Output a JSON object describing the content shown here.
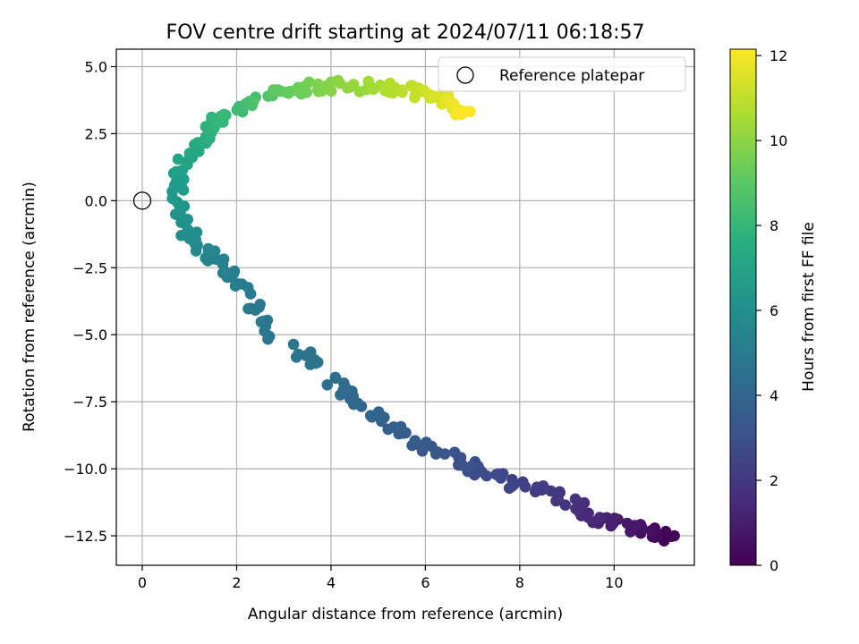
{
  "chart_data": {
    "type": "scatter",
    "title": "FOV centre drift starting at 2024/07/11 06:18:57",
    "xlabel": "Angular distance from reference (arcmin)",
    "ylabel": "Rotation from reference (arcmin)",
    "xlim": [
      -0.55,
      11.7
    ],
    "ylim": [
      -13.6,
      5.65
    ],
    "xticks": [
      0,
      2,
      4,
      6,
      8,
      10
    ],
    "yticks": [
      5.0,
      2.5,
      0.0,
      -2.5,
      -5.0,
      -7.5,
      -10.0,
      -12.5
    ],
    "xtick_labels": [
      "0",
      "2",
      "4",
      "6",
      "8",
      "10"
    ],
    "ytick_labels": [
      "5.0",
      "2.5",
      "0.0",
      "−2.5",
      "−5.0",
      "−7.5",
      "−10.0",
      "−12.5"
    ],
    "grid": true,
    "legend": {
      "placement": "top-right",
      "entries": [
        {
          "label": "Reference platepar",
          "marker": "open-circle"
        }
      ]
    },
    "reference_point": {
      "x": 0,
      "y": 0
    },
    "colorbar": {
      "label": "Hours from first FF file",
      "range": [
        0,
        12.15
      ],
      "ticks": [
        0,
        2,
        4,
        6,
        8,
        10,
        12
      ],
      "tick_labels": [
        "0",
        "2",
        "4",
        "6",
        "8",
        "10",
        "12"
      ],
      "colormap": "viridis"
    },
    "path_nodes": [
      {
        "x": 11.2,
        "y": -12.5,
        "t": 0.0
      },
      {
        "x": 10.5,
        "y": -12.3,
        "t": 0.6
      },
      {
        "x": 9.6,
        "y": -11.8,
        "t": 1.3
      },
      {
        "x": 8.8,
        "y": -11.0,
        "t": 1.9
      },
      {
        "x": 7.6,
        "y": -10.4,
        "t": 2.6
      },
      {
        "x": 6.6,
        "y": -9.6,
        "t": 3.1
      },
      {
        "x": 5.4,
        "y": -8.6,
        "t": 3.6
      },
      {
        "x": 4.4,
        "y": -7.4,
        "t": 4.1
      },
      {
        "x": 3.7,
        "y": -6.1,
        "t": 4.6
      },
      {
        "x": 2.7,
        "y": -4.9,
        "t": 4.8
      },
      {
        "x": 2.2,
        "y": -3.3,
        "t": 5.0
      },
      {
        "x": 1.6,
        "y": -2.3,
        "t": 5.4
      },
      {
        "x": 1.0,
        "y": -1.2,
        "t": 5.9
      },
      {
        "x": 0.7,
        "y": 0.0,
        "t": 6.4
      },
      {
        "x": 0.8,
        "y": 1.2,
        "t": 6.9
      },
      {
        "x": 1.3,
        "y": 2.5,
        "t": 7.6
      },
      {
        "x": 2.0,
        "y": 3.4,
        "t": 8.3
      },
      {
        "x": 2.9,
        "y": 4.1,
        "t": 9.0
      },
      {
        "x": 3.8,
        "y": 4.3,
        "t": 9.7
      },
      {
        "x": 4.8,
        "y": 4.25,
        "t": 10.4
      },
      {
        "x": 5.8,
        "y": 4.1,
        "t": 11.0
      },
      {
        "x": 6.4,
        "y": 3.75,
        "t": 11.6
      },
      {
        "x": 6.9,
        "y": 3.2,
        "t": 12.15
      }
    ],
    "point_count": 300
  }
}
